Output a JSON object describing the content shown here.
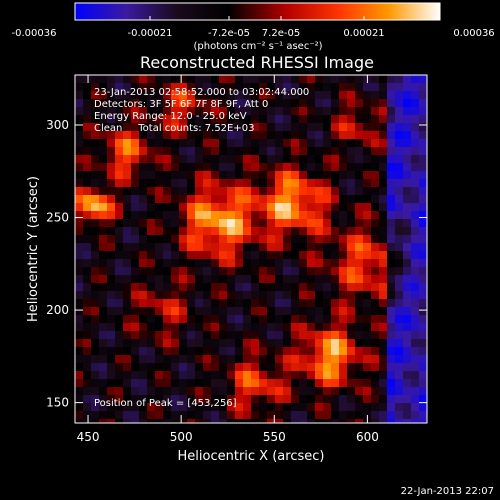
{
  "colorbar": {
    "tick_labels": [
      "-0.00036",
      "-0.00021",
      "-7.2e-05",
      "7.2e-05",
      "0.00021",
      "0.00036"
    ],
    "units_label": "(photons cm⁻² s⁻¹ asec⁻²)",
    "colors": [
      "#0000ff",
      "#3a1aa0",
      "#1a0a1a",
      "#000000",
      "#b40000",
      "#ff3300",
      "#ff9900",
      "#ffffff"
    ]
  },
  "chart_data": {
    "type": "heatmap",
    "title": "Reconstructed RHESSI Image",
    "xlabel": "Heliocentric X (arcsec)",
    "ylabel": "Heliocentric Y (arcsec)",
    "xlim": [
      443,
      632
    ],
    "ylim": [
      139,
      327
    ],
    "xticks": [
      450,
      500,
      550,
      600
    ],
    "yticks": [
      150,
      200,
      250,
      300
    ],
    "annotations": [
      "23-Jan-2013 02:58:52.000 to 03:02:44.000",
      "Detectors: 3F 5F 6F 7F 8F 9F, Att 0",
      "Energy Range: 12.0 - 25.0 keV",
      "Clean     Total counts: 7.52E+03"
    ],
    "peak_label": "Position of Peak = [453,256]",
    "peak": [
      453,
      256
    ],
    "emission_sources": [
      {
        "x": 520,
        "y": 248,
        "amplitude": 0.9,
        "sigma": 14
      },
      {
        "x": 560,
        "y": 258,
        "amplitude": 0.85,
        "sigma": 13
      },
      {
        "x": 600,
        "y": 225,
        "amplitude": 0.6,
        "sigma": 15
      },
      {
        "x": 470,
        "y": 285,
        "amplitude": 0.65,
        "sigma": 10
      },
      {
        "x": 453,
        "y": 256,
        "amplitude": 1.0,
        "sigma": 7
      },
      {
        "x": 500,
        "y": 310,
        "amplitude": 0.5,
        "sigma": 10
      },
      {
        "x": 580,
        "y": 175,
        "amplitude": 0.85,
        "sigma": 12
      },
      {
        "x": 540,
        "y": 160,
        "amplitude": 0.6,
        "sigma": 11
      },
      {
        "x": 490,
        "y": 200,
        "amplitude": 0.4,
        "sigma": 11
      },
      {
        "x": 595,
        "y": 300,
        "amplitude": 0.45,
        "sigma": 9
      }
    ],
    "grid": false
  },
  "footer": {
    "date_stamp": "22-Jan-2013 22:07"
  }
}
